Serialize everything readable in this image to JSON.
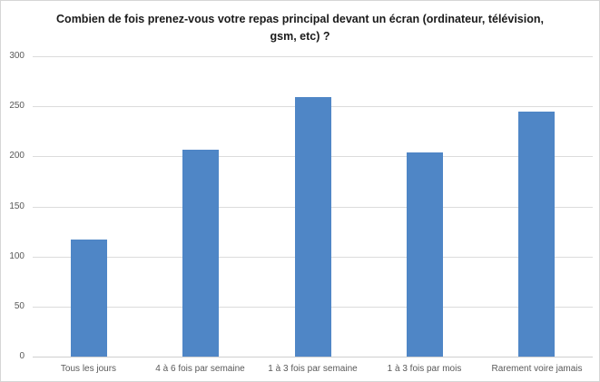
{
  "chart": {
    "title": "Combien de fois prenez-vous votre repas principal devant un écran (ordinateur, télévision, gsm, etc) ?"
  },
  "chart_data": {
    "type": "bar",
    "title": "Combien de fois prenez-vous votre repas principal devant un écran (ordinateur, télévision, gsm, etc) ?",
    "categories": [
      "Tous les jours",
      "4 à 6 fois par semaine",
      "1 à 3 fois par semaine",
      "1 à 3 fois par mois",
      "Rarement voire jamais"
    ],
    "values": [
      117,
      207,
      259,
      204,
      245
    ],
    "xlabel": "",
    "ylabel": "",
    "ylim": [
      0,
      300
    ],
    "ytick_step": 50,
    "yticks": [
      0,
      50,
      100,
      150,
      200,
      250,
      300
    ],
    "grid": true,
    "legend_position": "none",
    "colors": {
      "bar_fill": "#4f86c6",
      "gridline": "#dcdcdc",
      "axis_line": "#cfcfcf",
      "axis_label": "#595959",
      "title": "#1a1a1a",
      "frame_border": "#d6d6d6"
    }
  }
}
